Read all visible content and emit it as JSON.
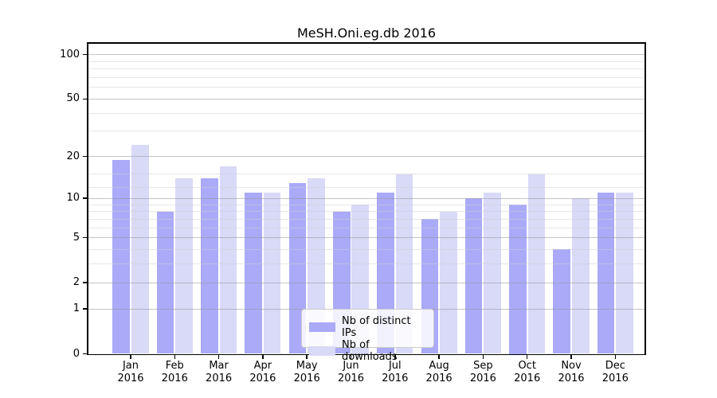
{
  "figure": {
    "title": "MeSH.Oni.eg.db 2016"
  },
  "chart_data": {
    "type": "bar",
    "title": "MeSH.Oni.eg.db 2016",
    "months": [
      "Jan",
      "Feb",
      "Mar",
      "Apr",
      "May",
      "Jun",
      "Jul",
      "Aug",
      "Sep",
      "Oct",
      "Nov",
      "Dec"
    ],
    "year_label": "2016",
    "series": [
      {
        "name": "Nb of distinct IPs",
        "color": "#aaaaf8",
        "values": [
          19,
          8,
          14,
          11,
          13,
          8,
          11,
          7,
          10,
          9,
          4,
          11
        ]
      },
      {
        "name": "Nb of downloads",
        "color": "#d9d9f8",
        "values": [
          24,
          14,
          17,
          11,
          14,
          9,
          15,
          8,
          11,
          15,
          10,
          11
        ]
      }
    ],
    "yscale": "log1p",
    "ylim": [
      0,
      100
    ],
    "yticks": [
      0,
      1,
      2,
      5,
      10,
      20,
      50,
      100
    ],
    "minor_gridlines": [
      3,
      4,
      6,
      7,
      8,
      9,
      12,
      15,
      30,
      40,
      60,
      70,
      80,
      90
    ],
    "grid": true,
    "legend_position": "lower center"
  }
}
